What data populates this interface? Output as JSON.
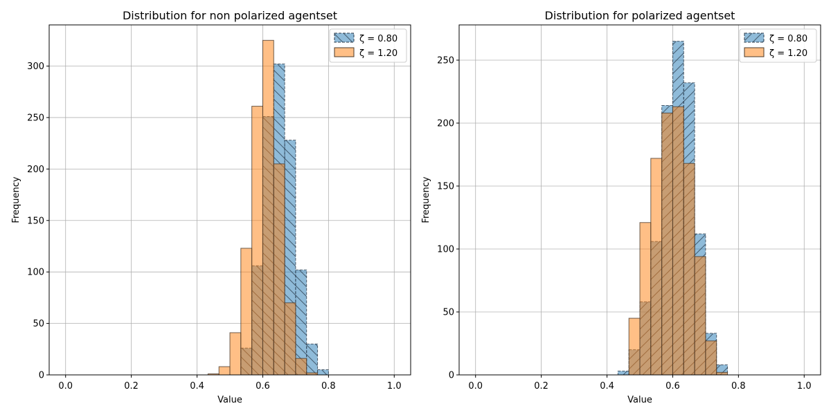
{
  "chart_data": [
    {
      "type": "histogram",
      "title": "Distribution for non polarized agentset",
      "xlabel": "Value",
      "ylabel": "Frequency",
      "xlim": [
        -0.05,
        1.05
      ],
      "ylim": [
        0,
        340
      ],
      "xticks": [
        "0.0",
        "0.2",
        "0.4",
        "0.6",
        "0.8",
        "1.0"
      ],
      "yticks": [
        "0",
        "50",
        "100",
        "150",
        "200",
        "250",
        "300"
      ],
      "grid": true,
      "legend_position": "top-right",
      "bin_edges": [
        0.0,
        0.0333,
        0.0667,
        0.1,
        0.1333,
        0.1667,
        0.2,
        0.2333,
        0.2667,
        0.3,
        0.3333,
        0.3667,
        0.4,
        0.4333,
        0.4667,
        0.5,
        0.5333,
        0.5667,
        0.6,
        0.6333,
        0.6667,
        0.7,
        0.7333,
        0.7667,
        0.8,
        0.8333,
        0.8667,
        0.9,
        0.9333,
        0.9667,
        1.0
      ],
      "series": [
        {
          "name": "ζ = 0.80",
          "color": "#1f77b4",
          "style": "dashed-hatched",
          "values": [
            0,
            0,
            0,
            0,
            0,
            0,
            0,
            0,
            0,
            0,
            0,
            0,
            0,
            0,
            0,
            0,
            26,
            106,
            251,
            302,
            228,
            102,
            30,
            5,
            0,
            0,
            0,
            0,
            0,
            0
          ]
        },
        {
          "name": "ζ = 1.20",
          "color": "#ff7f0e",
          "style": "solid",
          "values": [
            0,
            0,
            0,
            0,
            0,
            0,
            0,
            0,
            0,
            0,
            0,
            0,
            0,
            1,
            8,
            41,
            123,
            261,
            325,
            205,
            70,
            16,
            2,
            0,
            0,
            0,
            0,
            0,
            0,
            0
          ]
        }
      ]
    },
    {
      "type": "histogram",
      "title": "Distribution for polarized agentset",
      "xlabel": "Value",
      "ylabel": "Frequency",
      "xlim": [
        -0.05,
        1.05
      ],
      "ylim": [
        0,
        278
      ],
      "xticks": [
        "0.0",
        "0.2",
        "0.4",
        "0.6",
        "0.8",
        "1.0"
      ],
      "yticks": [
        "0",
        "50",
        "100",
        "150",
        "200",
        "250"
      ],
      "grid": true,
      "legend_position": "top-right",
      "bin_edges": [
        0.0,
        0.0333,
        0.0667,
        0.1,
        0.1333,
        0.1667,
        0.2,
        0.2333,
        0.2667,
        0.3,
        0.3333,
        0.3667,
        0.4,
        0.4333,
        0.4667,
        0.5,
        0.5333,
        0.5667,
        0.6,
        0.6333,
        0.6667,
        0.7,
        0.7333,
        0.7667,
        0.8,
        0.8333,
        0.8667,
        0.9,
        0.9333,
        0.9667,
        1.0
      ],
      "series": [
        {
          "name": "ζ = 0.80",
          "color": "#1f77b4",
          "style": "dashed-hatched",
          "values": [
            0,
            0,
            0,
            0,
            0,
            0,
            0,
            0,
            0,
            0,
            0,
            0,
            0,
            3,
            20,
            58,
            106,
            214,
            265,
            232,
            112,
            33,
            8,
            0,
            0,
            0,
            0,
            0,
            0,
            0
          ]
        },
        {
          "name": "ζ = 1.20",
          "color": "#ff7f0e",
          "style": "solid",
          "values": [
            0,
            0,
            0,
            0,
            0,
            0,
            0,
            0,
            0,
            0,
            0,
            0,
            0,
            0,
            45,
            121,
            172,
            208,
            213,
            168,
            94,
            27,
            2,
            0,
            0,
            0,
            0,
            0,
            0,
            0
          ]
        }
      ]
    }
  ]
}
